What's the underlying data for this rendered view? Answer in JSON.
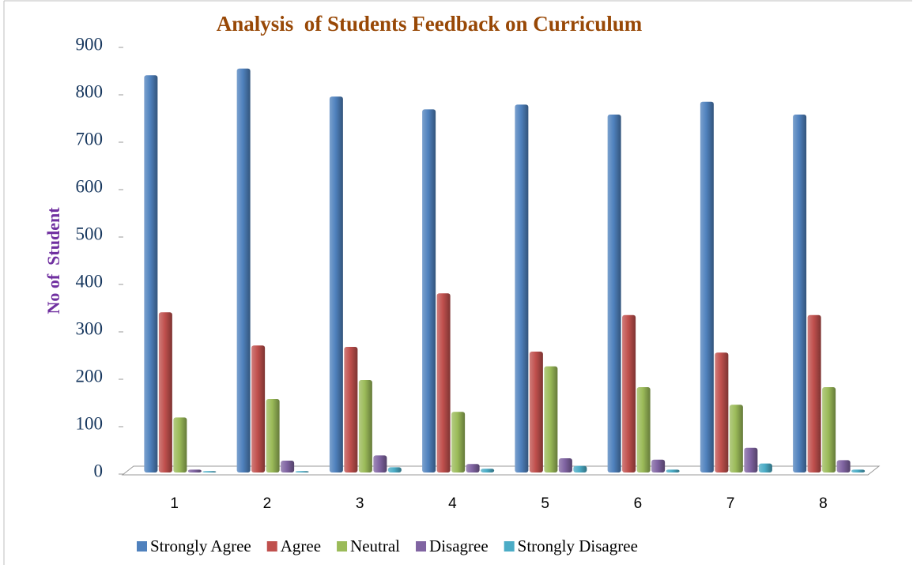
{
  "chart_data": {
    "type": "bar",
    "title": "Analysis  of Students Feedback on Curriculum",
    "y_label": "No of  Student",
    "categories": [
      "1",
      "2",
      "3",
      "4",
      "5",
      "6",
      "7",
      "8"
    ],
    "series": [
      {
        "name": "Strongly Agree",
        "color": "#4f81bd",
        "values": [
          838,
          852,
          793,
          766,
          776,
          755,
          782,
          755
        ]
      },
      {
        "name": "Agree",
        "color": "#c0504d",
        "values": [
          338,
          268,
          265,
          378,
          255,
          332,
          253,
          332
        ]
      },
      {
        "name": "Neutral",
        "color": "#9bbb59",
        "values": [
          116,
          155,
          195,
          128,
          224,
          180,
          143,
          180
        ]
      },
      {
        "name": "Disagree",
        "color": "#8064a2",
        "values": [
          6,
          25,
          36,
          18,
          30,
          27,
          52,
          26
        ]
      },
      {
        "name": "Strongly Disagree",
        "color": "#4bacc6",
        "values": [
          3,
          3,
          11,
          8,
          14,
          6,
          19,
          6
        ]
      }
    ],
    "ylim": [
      0,
      900
    ],
    "yticks": [
      0,
      100,
      200,
      300,
      400,
      500,
      600,
      700,
      800,
      900
    ],
    "legend": "bottom"
  }
}
